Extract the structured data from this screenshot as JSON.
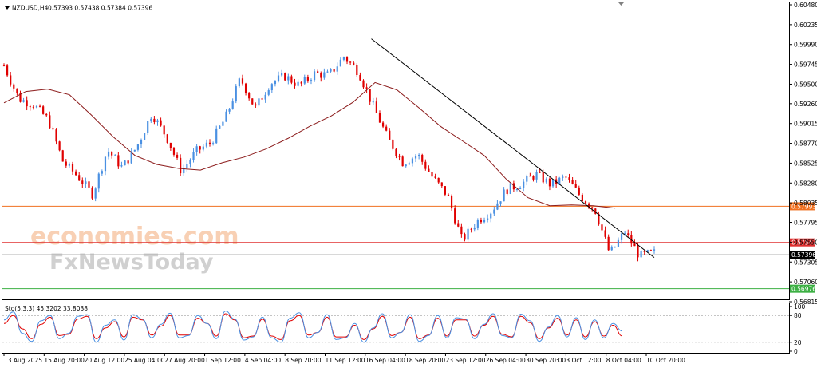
{
  "header": {
    "symbol_label": "NZDUSD,H4",
    "ohlc": "0.57393 0.57438 0.57384 0.57396"
  },
  "watermark": {
    "line1": "economies.com",
    "line2": "FxNewsToday"
  },
  "colors": {
    "bull": "#4a90e2",
    "bear": "#e00000",
    "ma": "#8b1a1a",
    "trendline": "#000000",
    "level_orange": "#f07020",
    "level_red": "#e03030",
    "level_green": "#3cb043",
    "current_price": "#b0b0b0",
    "stoch_main": "#4a90e2",
    "stoch_signal": "#e00000"
  },
  "chart_data": [
    {
      "type": "candlestick",
      "symbol": "NZDUSD",
      "timeframe": "H4",
      "ylim": [
        0.56815,
        0.6048
      ],
      "y_ticks": [
        "0.60480",
        "0.60235",
        "0.59990",
        "0.59745",
        "0.59500",
        "0.59260",
        "0.59015",
        "0.58770",
        "0.58525",
        "0.58280",
        "0.58035",
        "0.57795",
        "0.57550",
        "0.57305",
        "0.57060",
        "0.56815"
      ],
      "x_ticks": [
        "13 Aug 2025",
        "15 Aug 20:00",
        "20 Aug 12:00",
        "25 Aug 04:00",
        "27 Aug 20:00",
        "1 Sep 12:00",
        "4 Sep 04:00",
        "8 Sep 20:00",
        "11 Sep 12:00",
        "16 Sep 04:00",
        "18 Sep 20:00",
        "23 Sep 12:00",
        "26 Sep 04:00",
        "30 Sep 20:00",
        "3 Oct 12:00",
        "8 Oct 04:00",
        "10 Oct 20:00"
      ],
      "levels": [
        {
          "label": "0.57993",
          "value": 0.57993,
          "color": "orange"
        },
        {
          "label": "0.57547",
          "value": 0.57547,
          "color": "red"
        },
        {
          "label": "0.57396",
          "value": 0.57396,
          "color": "current"
        },
        {
          "label": "0.56976",
          "value": 0.56976,
          "color": "green"
        }
      ],
      "trendline": {
        "from": {
          "date": "16 Sep 04:00",
          "price": 0.6006
        },
        "to": {
          "date": "10 Oct 20:00",
          "price": 0.5738
        }
      },
      "moving_average_path": [
        0.5927,
        0.5941,
        0.5944,
        0.5937,
        0.5912,
        0.5885,
        0.5862,
        0.5851,
        0.5846,
        0.5844,
        0.5853,
        0.586,
        0.587,
        0.5883,
        0.5898,
        0.5911,
        0.5928,
        0.5952,
        0.5943,
        0.5921,
        0.5898,
        0.588,
        0.5862,
        0.5833,
        0.581,
        0.58,
        0.5801,
        0.58,
        0.5797
      ],
      "close_path": [
        0.5973,
        0.5932,
        0.5925,
        0.5906,
        0.5854,
        0.5836,
        0.5814,
        0.5869,
        0.5847,
        0.5873,
        0.5914,
        0.5885,
        0.5842,
        0.5867,
        0.5878,
        0.5909,
        0.5957,
        0.592,
        0.5951,
        0.596,
        0.5948,
        0.5963,
        0.5961,
        0.5984,
        0.5965,
        0.5922,
        0.5882,
        0.5853,
        0.5863,
        0.5835,
        0.5813,
        0.5757,
        0.5781,
        0.5794,
        0.582,
        0.5827,
        0.5839,
        0.5826,
        0.5835,
        0.5812,
        0.5795,
        0.574,
        0.5768,
        0.5738,
        0.5742
      ]
    },
    {
      "type": "line",
      "title": "Sto(5,3,3) 45.3202 33.8038",
      "ylim": [
        0,
        100
      ],
      "y_ticks": [
        "100",
        "80",
        "20",
        "0"
      ],
      "series": [
        {
          "name": "main",
          "values": [
            70,
            88,
            40,
            22,
            68,
            80,
            28,
            40,
            78,
            82,
            20,
            58,
            70,
            25,
            82,
            72,
            30,
            60,
            85,
            30,
            35,
            80,
            62,
            28,
            90,
            72,
            25,
            32,
            76,
            30,
            20,
            74,
            86,
            30,
            42,
            82,
            26,
            30,
            62,
            20,
            52,
            84,
            30,
            42,
            82,
            22,
            35,
            80,
            30,
            75,
            72,
            28,
            60,
            84,
            35,
            30,
            83,
            68,
            22,
            54,
            80,
            32,
            75,
            26,
            70,
            30,
            62,
            45
          ]
        },
        {
          "name": "signal",
          "values": [
            62,
            80,
            50,
            28,
            60,
            76,
            35,
            38,
            72,
            78,
            28,
            52,
            66,
            32,
            76,
            70,
            36,
            56,
            80,
            36,
            36,
            74,
            62,
            34,
            84,
            70,
            30,
            34,
            72,
            34,
            26,
            68,
            80,
            36,
            42,
            76,
            32,
            32,
            58,
            26,
            50,
            78,
            35,
            42,
            76,
            28,
            36,
            74,
            34,
            70,
            70,
            34,
            58,
            78,
            38,
            32,
            78,
            64,
            28,
            52,
            74,
            36,
            70,
            32,
            66,
            34,
            58,
            34
          ]
        }
      ]
    }
  ]
}
